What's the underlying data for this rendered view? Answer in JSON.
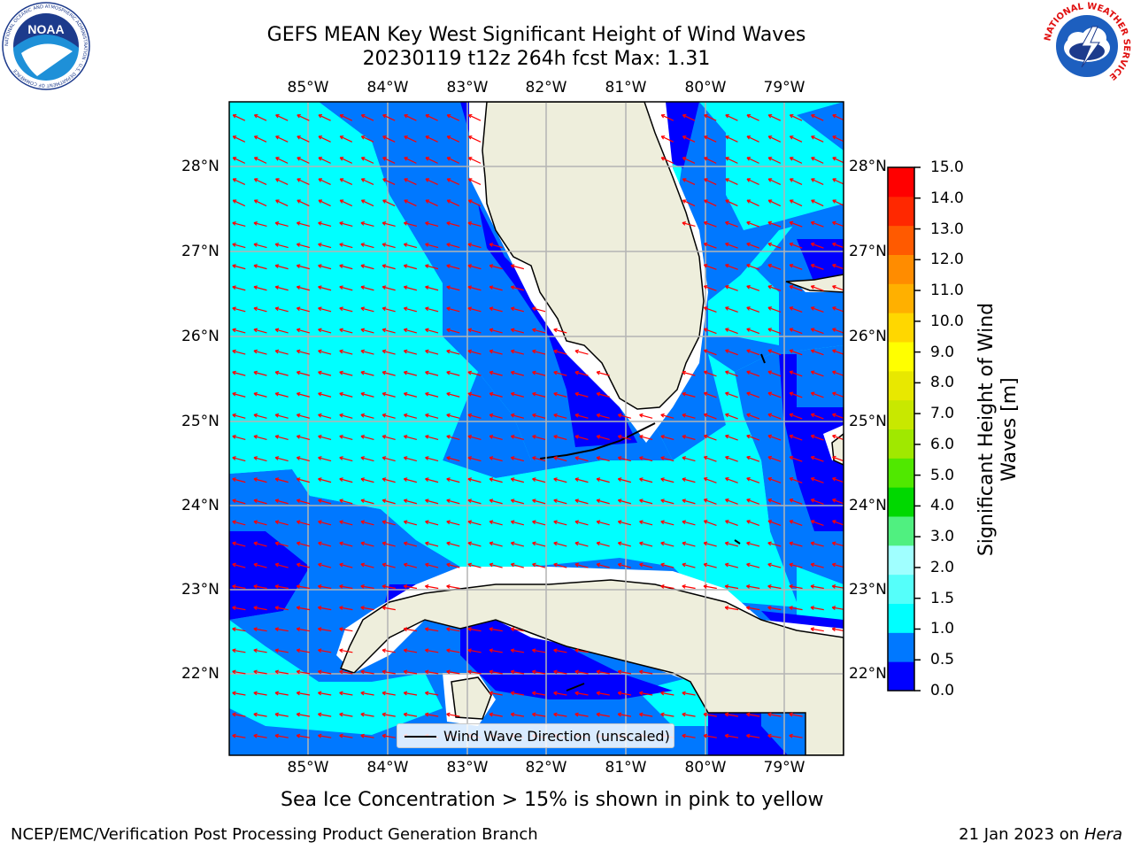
{
  "title": {
    "line1": "GEFS MEAN Key West Significant Height of Wind Waves",
    "line2": "20230119 t12z 264h fcst   Max: 1.31"
  },
  "logos": {
    "left": "NOAA",
    "left_ring_text": "NATIONAL OCEANIC AND ATMOSPHERIC ADMINISTRATION · U.S. DEPARTMENT OF COMMERCE",
    "right_ring_text": "NATIONAL WEATHER SERVICE"
  },
  "map": {
    "lon_labels": [
      "85°W",
      "84°W",
      "83°W",
      "82°W",
      "81°W",
      "80°W",
      "79°W"
    ],
    "lat_labels": [
      "28°N",
      "27°N",
      "26°N",
      "25°N",
      "24°N",
      "23°N",
      "22°N"
    ],
    "legend_label": "Wind Wave Direction (unscaled)",
    "arrow_color": "#ff0000",
    "land_color": "#eeeedc",
    "dominant_wave_direction": "toward west-northwest"
  },
  "colorbar": {
    "label": "Significant Height of Wind Waves [m]",
    "ticks": [
      "15.0",
      "14.0",
      "13.0",
      "12.0",
      "11.0",
      "10.0",
      "9.0",
      "8.0",
      "7.0",
      "6.0",
      "5.0",
      "4.0",
      "3.0",
      "2.0",
      "1.5",
      "1.0",
      "0.5",
      "0.0"
    ],
    "colors_bottom_to_top": [
      "#0000ff",
      "#0078ff",
      "#00ffff",
      "#55fffa",
      "#a0ffff",
      "#50f080",
      "#00d800",
      "#50e800",
      "#a0e800",
      "#c8e800",
      "#e8e800",
      "#ffff00",
      "#ffd700",
      "#ffb000",
      "#ff8c00",
      "#ff5a00",
      "#ff2800",
      "#ff0000"
    ]
  },
  "subtitle": "Sea Ice Concentration > 15% is shown in pink to yellow",
  "footer": {
    "left": "NCEP/EMC/Verification Post Processing Product Generation Branch",
    "right_prefix": "21 Jan 2023 on ",
    "right_machine": "Hera"
  }
}
